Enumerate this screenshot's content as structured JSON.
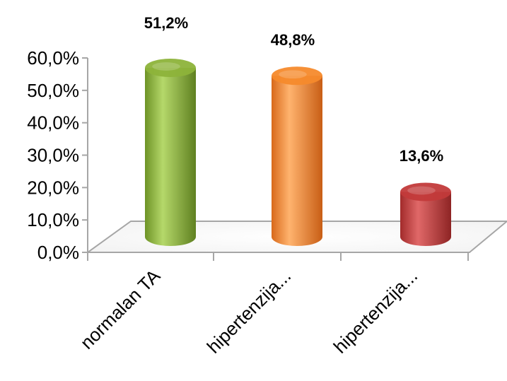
{
  "chart_data": {
    "type": "bar",
    "style": "3d-cylinder",
    "categories": [
      "normalan TA",
      "hipertenzija...",
      "hipertenzija..."
    ],
    "values": [
      51.2,
      48.8,
      13.6
    ],
    "data_labels": [
      "51,2%",
      "48,8%",
      "13,6%"
    ],
    "y_ticks": [
      "0,0%",
      "10,0%",
      "20,0%",
      "30,0%",
      "40,0%",
      "50,0%",
      "60,0%"
    ],
    "ylim": [
      0,
      60
    ],
    "title": "",
    "xlabel": "",
    "ylabel": "",
    "grid": false,
    "legend": "none",
    "colors": [
      "#8db33a",
      "#f68a2c",
      "#c23a3a"
    ]
  }
}
